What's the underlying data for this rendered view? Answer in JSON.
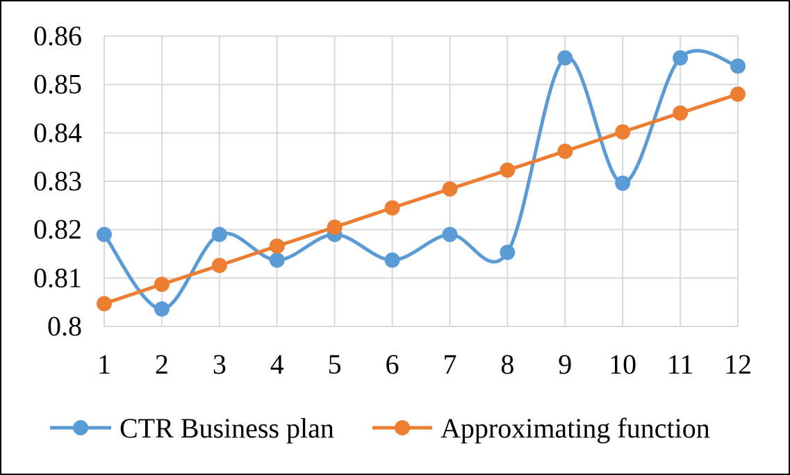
{
  "chart_data": {
    "type": "line",
    "title": "",
    "xlabel": "",
    "ylabel": "",
    "x": [
      "1",
      "2",
      "3",
      "4",
      "5",
      "6",
      "7",
      "8",
      "9",
      "10",
      "11",
      "12"
    ],
    "ylim": [
      0.8,
      0.86
    ],
    "yticks": [
      "0.8",
      "0.81",
      "0.82",
      "0.83",
      "0.84",
      "0.85",
      "0.86"
    ],
    "grid": true,
    "legend_position": "bottom",
    "series": [
      {
        "name": "CTR Business plan",
        "color": "#5b9bd5",
        "smooth": true,
        "values": [
          0.819,
          0.8036,
          0.819,
          0.8137,
          0.819,
          0.8137,
          0.819,
          0.8153,
          0.8555,
          0.8296,
          0.8555,
          0.8538
        ]
      },
      {
        "name": "Approximating function",
        "color": "#ed7d31",
        "smooth": false,
        "values": [
          0.8047,
          0.8087,
          0.8126,
          0.8166,
          0.8205,
          0.8245,
          0.8284,
          0.8323,
          0.8362,
          0.8402,
          0.8441,
          0.848
        ]
      }
    ]
  }
}
